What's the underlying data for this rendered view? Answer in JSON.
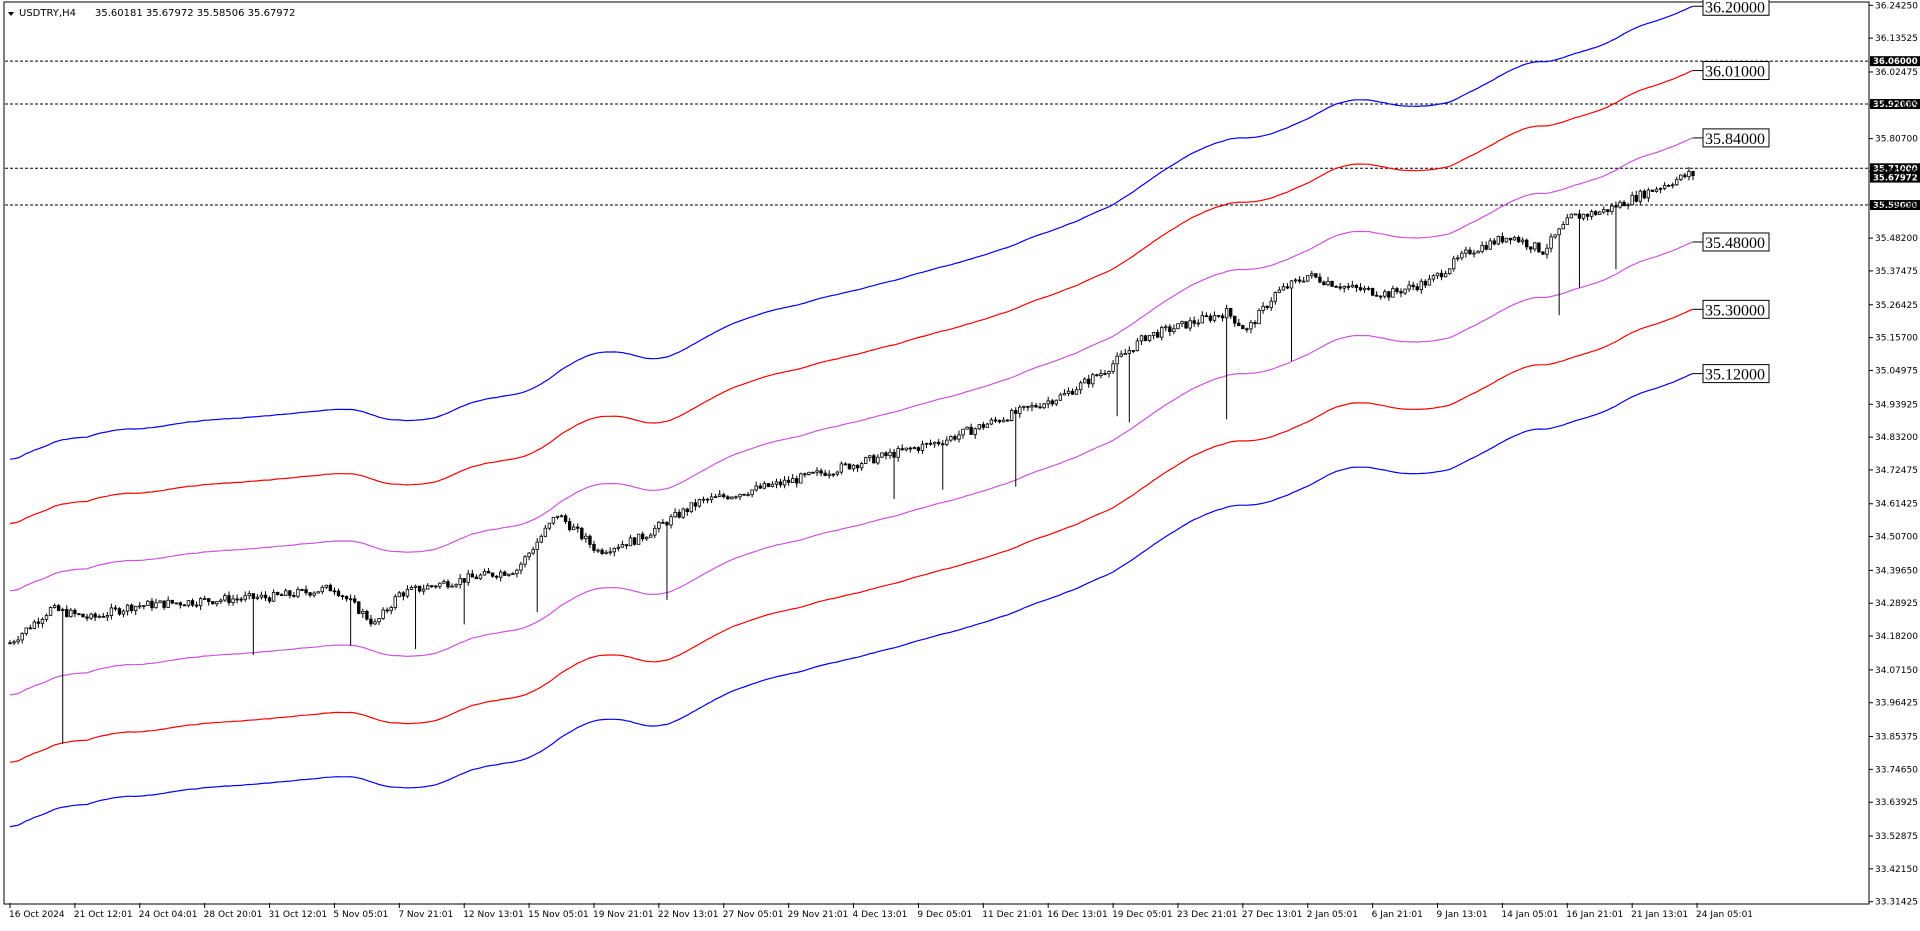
{
  "header": {
    "symbol": "USDTRY,H4",
    "ohlc": "35.60181 35.67972 35.58506 35.67972",
    "menu_icon": "triangle-down-icon"
  },
  "chart_data": {
    "type": "candlestick",
    "title": "",
    "xlabel": "",
    "ylabel": "",
    "grid": false,
    "ylim": [
      33.31,
      36.25
    ],
    "y_ticks": [
      "36.24250",
      "36.13525",
      "36.02475",
      "35.91725",
      "35.80700",
      "35.69975",
      "35.59250",
      "35.48200",
      "35.37475",
      "35.26425",
      "35.15700",
      "35.04975",
      "34.93925",
      "34.83200",
      "34.72475",
      "34.61425",
      "34.50700",
      "34.39650",
      "34.28925",
      "34.18200",
      "34.07150",
      "33.96425",
      "33.85375",
      "33.74650",
      "33.63925",
      "33.52875",
      "33.42150",
      "33.31425"
    ],
    "y_tick_values": [
      36.2425,
      36.13525,
      36.02475,
      35.91725,
      35.807,
      35.69975,
      35.5925,
      35.482,
      35.37475,
      35.26425,
      35.157,
      35.04975,
      34.93925,
      34.832,
      34.72475,
      34.61425,
      34.507,
      34.3965,
      34.28925,
      34.182,
      34.0715,
      33.96425,
      33.85375,
      33.7465,
      33.63925,
      33.52875,
      33.4215,
      33.31425
    ],
    "x_ticks": [
      "16 Oct 2024",
      "21 Oct 12:01",
      "24 Oct 04:01",
      "28 Oct 20:01",
      "31 Oct 12:01",
      "5 Nov 05:01",
      "7 Nov 21:01",
      "12 Nov 13:01",
      "15 Nov 05:01",
      "19 Nov 21:01",
      "22 Nov 13:01",
      "27 Nov 05:01",
      "29 Nov 21:01",
      "4 Dec 13:01",
      "9 Dec 05:01",
      "11 Dec 21:01",
      "16 Dec 13:01",
      "19 Dec 05:01",
      "23 Dec 21:01",
      "27 Dec 13:01",
      "2 Jan 05:01",
      "6 Jan 21:01",
      "9 Jan 13:01",
      "14 Jan 05:01",
      "16 Jan 21:01",
      "21 Jan 13:01",
      "24 Jan 05:01"
    ],
    "x_tick_index": [
      0,
      16,
      32,
      48,
      64,
      80,
      96,
      112,
      128,
      144,
      160,
      176,
      192,
      208,
      224,
      240,
      256,
      272,
      288,
      304,
      320,
      336,
      352,
      368,
      384,
      400,
      416
    ],
    "bar_count": 416,
    "price_anchors": [
      [
        0,
        34.16
      ],
      [
        10,
        34.27
      ],
      [
        20,
        34.24
      ],
      [
        30,
        34.28
      ],
      [
        50,
        34.3
      ],
      [
        65,
        34.31
      ],
      [
        80,
        34.34
      ],
      [
        90,
        34.22
      ],
      [
        96,
        34.32
      ],
      [
        105,
        34.35
      ],
      [
        125,
        34.4
      ],
      [
        135,
        34.58
      ],
      [
        145,
        34.46
      ],
      [
        155,
        34.5
      ],
      [
        170,
        34.62
      ],
      [
        190,
        34.68
      ],
      [
        210,
        34.75
      ],
      [
        230,
        34.82
      ],
      [
        250,
        34.92
      ],
      [
        260,
        34.97
      ],
      [
        270,
        35.05
      ],
      [
        280,
        35.16
      ],
      [
        290,
        35.2
      ],
      [
        300,
        35.24
      ],
      [
        305,
        35.18
      ],
      [
        312,
        35.3
      ],
      [
        320,
        35.36
      ],
      [
        330,
        35.32
      ],
      [
        340,
        35.3
      ],
      [
        350,
        35.34
      ],
      [
        360,
        35.44
      ],
      [
        370,
        35.49
      ],
      [
        378,
        35.44
      ],
      [
        385,
        35.55
      ],
      [
        393,
        35.57
      ],
      [
        405,
        35.64
      ],
      [
        414,
        35.69
      ]
    ],
    "spike_bars": [
      [
        13,
        33.83
      ],
      [
        60,
        34.12
      ],
      [
        84,
        34.15
      ],
      [
        100,
        34.14
      ],
      [
        112,
        34.22
      ],
      [
        130,
        34.26
      ],
      [
        162,
        34.3
      ],
      [
        218,
        34.63
      ],
      [
        230,
        34.66
      ],
      [
        248,
        34.67
      ],
      [
        273,
        34.9
      ],
      [
        276,
        34.88
      ],
      [
        300,
        34.89
      ],
      [
        316,
        35.08
      ],
      [
        382,
        35.23
      ],
      [
        387,
        35.32
      ],
      [
        396,
        35.38
      ]
    ],
    "levels": [
      {
        "price": 36.06,
        "label": "36.06000"
      },
      {
        "price": 35.92,
        "label": "35.92000"
      },
      {
        "price": 35.71,
        "label": "35.71000"
      },
      {
        "price": 35.59,
        "label": "35.59000"
      }
    ],
    "current_price": {
      "price": 35.67972,
      "label": "35.67972"
    },
    "band_offsets": [
      0.39,
      0.17,
      -0.17,
      -0.39,
      -0.6
    ],
    "series": [
      {
        "color": "#0000ff",
        "offset": 0.6,
        "end_label": "36.20000"
      },
      {
        "color": "#ff0000",
        "offset": 0.39,
        "end_label": "36.01000"
      },
      {
        "color": "#cc55dd",
        "offset": 0.17,
        "end_label": "35.84000"
      },
      {
        "color": "#cc55dd",
        "offset": -0.17,
        "end_label": "35.48000"
      },
      {
        "color": "#ff0000",
        "offset": -0.39,
        "end_label": "35.30000"
      },
      {
        "color": "#0000ff",
        "offset": -0.6,
        "end_label": "35.12000"
      }
    ]
  }
}
